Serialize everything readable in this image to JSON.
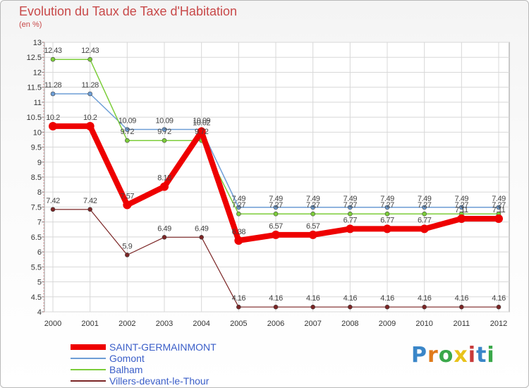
{
  "title": "Evolution du Taux de Taxe d'Habitation",
  "subtitle": "(en %)",
  "logo_text": "Proxiti",
  "logo_colors": [
    "#3a86c8",
    "#e07b1a",
    "#3aa84a",
    "#e8c21a",
    "#c83a3a",
    "#3a86c8",
    "#3aa84a"
  ],
  "chart_data": {
    "type": "line",
    "x": [
      2000,
      2001,
      2002,
      2003,
      2004,
      2005,
      2006,
      2007,
      2008,
      2009,
      2010,
      2011,
      2012
    ],
    "ylim": [
      4,
      13
    ],
    "yticks": [
      "4",
      "4.5",
      "5",
      "5.5",
      "6",
      "6.5",
      "7",
      "7.5",
      "8",
      "8.5",
      "9",
      "9.5",
      "10",
      "10.5",
      "11",
      "11.5",
      "12",
      "12.5",
      "13"
    ],
    "series": [
      {
        "name": "SAINT-GERMAINMONT",
        "color": "#ee0000",
        "values": [
          10.2,
          10.2,
          7.57,
          8.18,
          10.02,
          6.38,
          6.57,
          6.57,
          6.77,
          6.77,
          6.77,
          7.11,
          7.11
        ],
        "labels": [
          "10.2",
          "10.2",
          "7.57",
          "8.18",
          "10.02",
          "6.38",
          "6.57",
          "6.57",
          "6.77",
          "6.77",
          "6.77",
          "7.11",
          "7.11"
        ]
      },
      {
        "name": "Gomont",
        "color": "#6d9ed6",
        "values": [
          11.28,
          11.28,
          10.09,
          10.09,
          10.09,
          7.49,
          7.49,
          7.49,
          7.49,
          7.49,
          7.49,
          7.49,
          7.49
        ],
        "labels": [
          "11.28",
          "11.28",
          "10.09",
          "10.09",
          "10.09",
          "7.49",
          "7.49",
          "7.49",
          "7.49",
          "7.49",
          "7.49",
          "7.49",
          "7.49"
        ]
      },
      {
        "name": "Balham",
        "color": "#7ccd3a",
        "values": [
          12.43,
          12.43,
          9.72,
          9.72,
          9.72,
          7.27,
          7.27,
          7.27,
          7.27,
          7.27,
          7.27,
          7.27,
          7.27
        ],
        "labels": [
          "12.43",
          "12.43",
          "9.72",
          "9.72",
          "9.72",
          "7.27",
          "7.27",
          "7.27",
          "7.27",
          "7.27",
          "7.27",
          "7.27",
          "7.27"
        ]
      },
      {
        "name": "Villers-devant-le-Thour",
        "color": "#7b2525",
        "values": [
          7.42,
          7.42,
          5.9,
          6.49,
          6.49,
          4.16,
          4.16,
          4.16,
          4.16,
          4.16,
          4.16,
          4.16,
          4.16
        ],
        "labels": [
          "7.42",
          "7.42",
          "5.9",
          "6.49",
          "6.49",
          "4.16",
          "4.16",
          "4.16",
          "4.16",
          "4.16",
          "4.16",
          "4.16",
          "4.16"
        ]
      }
    ],
    "grid": true,
    "legend_position": "bottom-left"
  }
}
